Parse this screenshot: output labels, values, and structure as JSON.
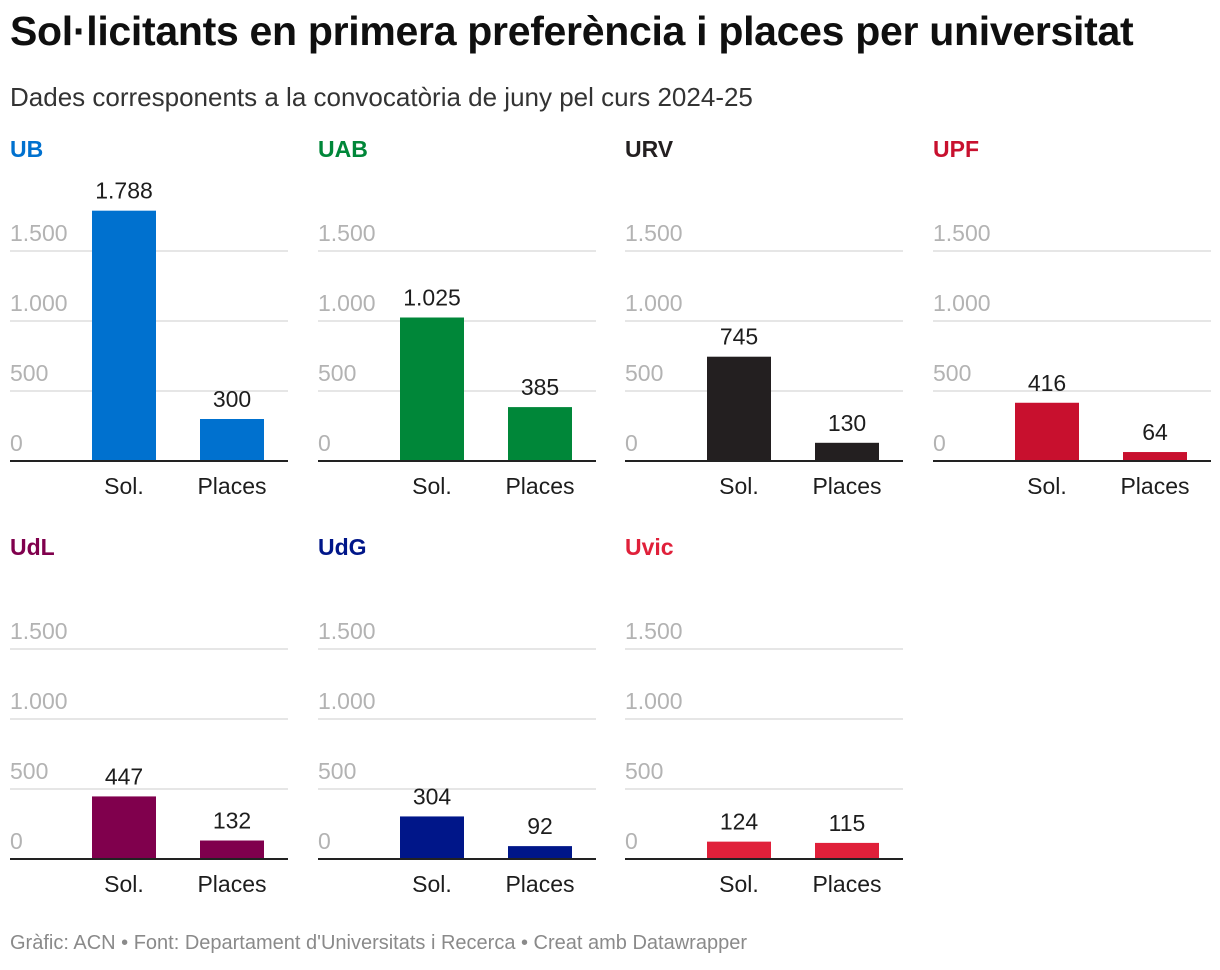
{
  "title": "Sol·licitants en primera preferència i places per universitat",
  "subtitle": "Dades corresponents a la convocatòria de juny pel curs 2024-25",
  "footer": "Gràfic: ACN • Font: Departament d'Universitats i Recerca • Creat amb Datawrapper",
  "chart_data": [
    {
      "type": "bar",
      "title": "UB",
      "color": "#0071cf",
      "categories": [
        "Sol.",
        "Places"
      ],
      "values": [
        1788,
        300
      ],
      "value_labels": [
        "1.788",
        "300"
      ],
      "ylim": [
        0,
        1800
      ],
      "yticks": [
        0,
        500,
        1000,
        1500
      ],
      "ytick_labels": [
        "0",
        "500",
        "1.000",
        "1.500"
      ],
      "grid": true
    },
    {
      "type": "bar",
      "title": "UAB",
      "color": "#008739",
      "categories": [
        "Sol.",
        "Places"
      ],
      "values": [
        1025,
        385
      ],
      "value_labels": [
        "1.025",
        "385"
      ],
      "ylim": [
        0,
        1800
      ],
      "yticks": [
        0,
        500,
        1000,
        1500
      ],
      "ytick_labels": [
        "0",
        "500",
        "1.000",
        "1.500"
      ],
      "grid": true
    },
    {
      "type": "bar",
      "title": "URV",
      "color": "#231f20",
      "categories": [
        "Sol.",
        "Places"
      ],
      "values": [
        745,
        130
      ],
      "value_labels": [
        "745",
        "130"
      ],
      "ylim": [
        0,
        1800
      ],
      "yticks": [
        0,
        500,
        1000,
        1500
      ],
      "ytick_labels": [
        "0",
        "500",
        "1.000",
        "1.500"
      ],
      "grid": true
    },
    {
      "type": "bar",
      "title": "UPF",
      "color": "#c8102e",
      "categories": [
        "Sol.",
        "Places"
      ],
      "values": [
        416,
        64
      ],
      "value_labels": [
        "416",
        "64"
      ],
      "ylim": [
        0,
        1800
      ],
      "yticks": [
        0,
        500,
        1000,
        1500
      ],
      "ytick_labels": [
        "0",
        "500",
        "1.000",
        "1.500"
      ],
      "grid": true
    },
    {
      "type": "bar",
      "title": "UdL",
      "color": "#80004d",
      "categories": [
        "Sol.",
        "Places"
      ],
      "values": [
        447,
        132
      ],
      "value_labels": [
        "447",
        "132"
      ],
      "ylim": [
        0,
        1800
      ],
      "yticks": [
        0,
        500,
        1000,
        1500
      ],
      "ytick_labels": [
        "0",
        "500",
        "1.000",
        "1.500"
      ],
      "grid": true
    },
    {
      "type": "bar",
      "title": "UdG",
      "color": "#001689",
      "categories": [
        "Sol.",
        "Places"
      ],
      "values": [
        304,
        92
      ],
      "value_labels": [
        "304",
        "92"
      ],
      "ylim": [
        0,
        1800
      ],
      "yticks": [
        0,
        500,
        1000,
        1500
      ],
      "ytick_labels": [
        "0",
        "500",
        "1.000",
        "1.500"
      ],
      "grid": true
    },
    {
      "type": "bar",
      "title": "Uvic",
      "color": "#e0203a",
      "categories": [
        "Sol.",
        "Places"
      ],
      "values": [
        124,
        115
      ],
      "value_labels": [
        "124",
        "115"
      ],
      "ylim": [
        0,
        1800
      ],
      "yticks": [
        0,
        500,
        1000,
        1500
      ],
      "ytick_labels": [
        "0",
        "500",
        "1.000",
        "1.500"
      ],
      "grid": true
    }
  ]
}
